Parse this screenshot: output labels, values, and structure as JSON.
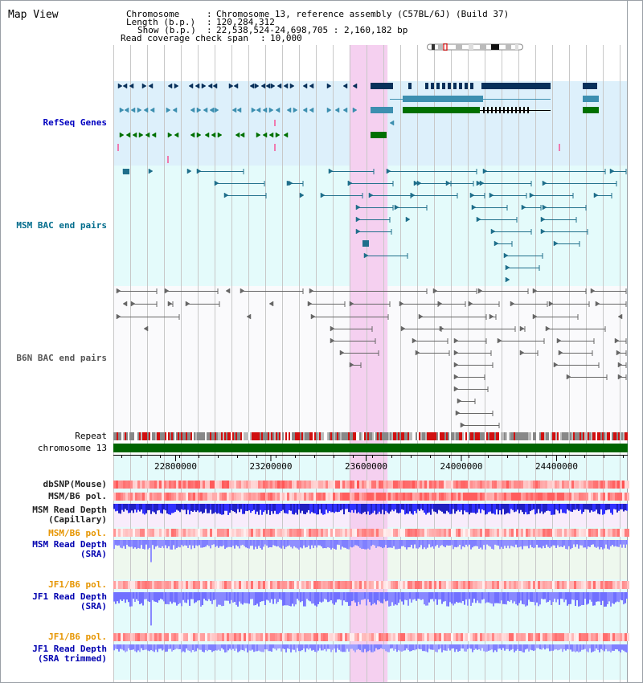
{
  "app": {
    "title": "Map View"
  },
  "header": {
    "chromosome_label": "Chromosome",
    "chromosome_value": "Chromosome 13, reference assembly (C57BL/6J) (Build 37)",
    "length_label": "Length (b.p.)",
    "length_value": "120,284,312",
    "show_label": "Show (b.p.)",
    "show_value": "22,538,524-24,698,705 : 2,160,182 bp",
    "coverage_label": "Read coverage check span",
    "coverage_value": "10,000"
  },
  "axis": {
    "ticks": [
      "22800000",
      "23200000",
      "23600000",
      "24000000",
      "24400000"
    ],
    "tick_values": [
      22800000,
      23200000,
      23600000,
      24000000,
      24400000
    ],
    "range": [
      22538524,
      24698705
    ]
  },
  "highlight": {
    "start": 23530000,
    "end": 23690000,
    "color": "#f5d0f0"
  },
  "tracks": {
    "refseq": {
      "label": "RefSeq Genes",
      "color": "#0000c0",
      "bg": "#ddf0fb"
    },
    "msm_bac": {
      "label": "MSM BAC end pairs",
      "color": "#006c8c",
      "bg": "#e4fbfb"
    },
    "b6n_bac": {
      "label": "B6N BAC end pairs",
      "color": "#555555",
      "bg": "#fafafc"
    },
    "repeat": {
      "label": "Repeat"
    },
    "chromosome": {
      "label": "chromosome 13",
      "color": "#006400"
    },
    "dbsnp": {
      "label": "dbSNP(Mouse)"
    },
    "msm_b6_pol_cap": {
      "label": "MSM/B6 pol."
    },
    "msm_depth_cap": {
      "label": "MSM Read Depth\n(Capillary)"
    },
    "msm_b6_pol_sra": {
      "label": "MSM/B6 pol.",
      "color": "#e69500"
    },
    "msm_depth_sra": {
      "label": "MSM Read Depth\n(SRA)",
      "color": "#0000b0"
    },
    "jf1_b6_pol": {
      "label": "JF1/B6 pol.",
      "color": "#e69500"
    },
    "jf1_depth_sra": {
      "label": "JF1 Read Depth\n(SRA)",
      "color": "#0000b0"
    },
    "jf1_b6_pol_trim": {
      "label": "JF1/B6 pol.",
      "color": "#e69500"
    },
    "jf1_depth_trim": {
      "label": "JF1 Read Depth\n(SRA trimmed)",
      "color": "#0000b0"
    }
  },
  "colors": {
    "gene_navy": "#08305a",
    "gene_teal": "#3d8fb0",
    "gene_green": "#007000",
    "bac_teal": "#1f6f8b",
    "bac_gray": "#666666",
    "snp_red": "#e60000",
    "depth_blue": "#2020ff",
    "grid": "#c8c8c8"
  }
}
